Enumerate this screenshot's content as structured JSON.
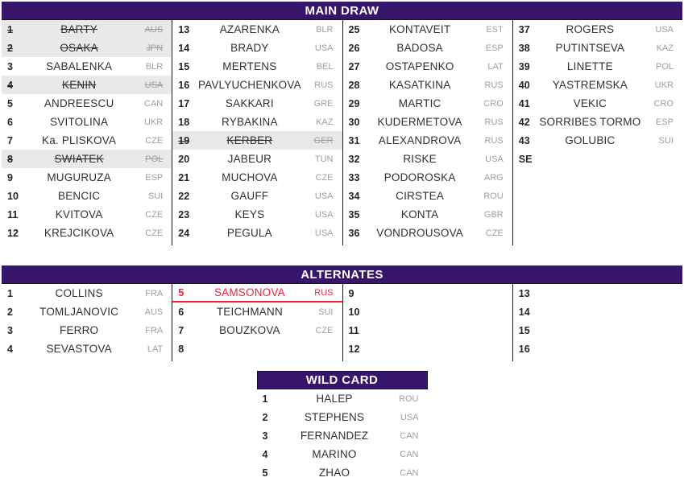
{
  "colors": {
    "header_bg": "#36156b",
    "header_text": "#ffffff",
    "withdrawn_row_bg": "#e9e9e9",
    "promoted_red": "#f5203a",
    "divider": "#1a1a1a",
    "number_text": "#262626",
    "name_text": "#303030",
    "country_text": "#9b9fa3"
  },
  "sections": {
    "main_draw": {
      "title": "MAIN DRAW",
      "columns": [
        {
          "entries": [
            {
              "no": "1",
              "name": "BARTY",
              "country": "AUS",
              "withdrawn": true
            },
            {
              "no": "2",
              "name": "OSAKA",
              "country": "JPN",
              "withdrawn": true
            },
            {
              "no": "3",
              "name": "SABALENKA",
              "country": "BLR"
            },
            {
              "no": "4",
              "name": "KENIN",
              "country": "USA",
              "withdrawn": true
            },
            {
              "no": "5",
              "name": "ANDREESCU",
              "country": "CAN"
            },
            {
              "no": "6",
              "name": "SVITOLINA",
              "country": "UKR"
            },
            {
              "no": "7",
              "name": "Ka. PLISKOVA",
              "country": "CZE"
            },
            {
              "no": "8",
              "name": "SWIATEK",
              "country": "POL",
              "withdrawn": true
            },
            {
              "no": "9",
              "name": "MUGURUZA",
              "country": "ESP"
            },
            {
              "no": "10",
              "name": "BENCIC",
              "country": "SUI"
            },
            {
              "no": "11",
              "name": "KVITOVA",
              "country": "CZE"
            },
            {
              "no": "12",
              "name": "KREJCIKOVA",
              "country": "CZE"
            }
          ]
        },
        {
          "entries": [
            {
              "no": "13",
              "name": "AZARENKA",
              "country": "BLR"
            },
            {
              "no": "14",
              "name": "BRADY",
              "country": "USA"
            },
            {
              "no": "15",
              "name": "MERTENS",
              "country": "BEL"
            },
            {
              "no": "16",
              "name": "PAVLYUCHENKOVA",
              "country": "RUS"
            },
            {
              "no": "17",
              "name": "SAKKARI",
              "country": "GRE"
            },
            {
              "no": "18",
              "name": "RYBAKINA",
              "country": "KAZ"
            },
            {
              "no": "19",
              "name": "KERBER",
              "country": "GER",
              "withdrawn": true
            },
            {
              "no": "20",
              "name": "JABEUR",
              "country": "TUN"
            },
            {
              "no": "21",
              "name": "MUCHOVA",
              "country": "CZE"
            },
            {
              "no": "22",
              "name": "GAUFF",
              "country": "USA"
            },
            {
              "no": "23",
              "name": "KEYS",
              "country": "USA"
            },
            {
              "no": "24",
              "name": "PEGULA",
              "country": "USA"
            }
          ]
        },
        {
          "entries": [
            {
              "no": "25",
              "name": "KONTAVEIT",
              "country": "EST"
            },
            {
              "no": "26",
              "name": "BADOSA",
              "country": "ESP"
            },
            {
              "no": "27",
              "name": "OSTAPENKO",
              "country": "LAT"
            },
            {
              "no": "28",
              "name": "KASATKINA",
              "country": "RUS"
            },
            {
              "no": "29",
              "name": "MARTIC",
              "country": "CRO"
            },
            {
              "no": "30",
              "name": "KUDERMETOVA",
              "country": "RUS"
            },
            {
              "no": "31",
              "name": "ALEXANDROVA",
              "country": "RUS"
            },
            {
              "no": "32",
              "name": "RISKE",
              "country": "USA"
            },
            {
              "no": "33",
              "name": "PODOROSKA",
              "country": "ARG"
            },
            {
              "no": "34",
              "name": "CIRSTEA",
              "country": "ROU"
            },
            {
              "no": "35",
              "name": "KONTA",
              "country": "GBR"
            },
            {
              "no": "36",
              "name": "VONDROUSOVA",
              "country": "CZE"
            }
          ]
        },
        {
          "entries": [
            {
              "no": "37",
              "name": "ROGERS",
              "country": "USA"
            },
            {
              "no": "38",
              "name": "PUTINTSEVA",
              "country": "KAZ"
            },
            {
              "no": "39",
              "name": "LINETTE",
              "country": "POL"
            },
            {
              "no": "40",
              "name": "YASTREMSKA",
              "country": "UKR"
            },
            {
              "no": "41",
              "name": "VEKIC",
              "country": "CRO"
            },
            {
              "no": "42",
              "name": "SORRIBES TORMO",
              "country": "ESP"
            },
            {
              "no": "43",
              "name": "GOLUBIC",
              "country": "SUI"
            },
            {
              "no": "SE",
              "name": "",
              "country": ""
            }
          ]
        }
      ]
    },
    "alternates": {
      "title": "ALTERNATES",
      "columns": [
        {
          "entries": [
            {
              "no": "1",
              "name": "COLLINS",
              "country": "FRA"
            },
            {
              "no": "2",
              "name": "TOMLJANOVIC",
              "country": "AUS"
            },
            {
              "no": "3",
              "name": "FERRO",
              "country": "FRA"
            },
            {
              "no": "4",
              "name": "SEVASTOVA",
              "country": "LAT"
            }
          ]
        },
        {
          "entries": [
            {
              "no": "5",
              "name": "SAMSONOVA",
              "country": "RUS",
              "promoted": true
            },
            {
              "no": "6",
              "name": "TEICHMANN",
              "country": "SUI"
            },
            {
              "no": "7",
              "name": "BOUZKOVA",
              "country": "CZE"
            },
            {
              "no": "8",
              "name": "",
              "country": ""
            }
          ]
        },
        {
          "entries": [
            {
              "no": "9",
              "name": "",
              "country": ""
            },
            {
              "no": "10",
              "name": "",
              "country": ""
            },
            {
              "no": "11",
              "name": "",
              "country": ""
            },
            {
              "no": "12",
              "name": "",
              "country": ""
            }
          ]
        },
        {
          "entries": [
            {
              "no": "13",
              "name": "",
              "country": ""
            },
            {
              "no": "14",
              "name": "",
              "country": ""
            },
            {
              "no": "15",
              "name": "",
              "country": ""
            },
            {
              "no": "16",
              "name": "",
              "country": ""
            }
          ]
        }
      ]
    },
    "wild_card": {
      "title": "WILD CARD",
      "columns": [
        {
          "entries": [
            {
              "no": "1",
              "name": "HALEP",
              "country": "ROU"
            },
            {
              "no": "2",
              "name": "STEPHENS",
              "country": "USA"
            },
            {
              "no": "3",
              "name": "FERNANDEZ",
              "country": "CAN"
            },
            {
              "no": "4",
              "name": "MARINO",
              "country": "CAN"
            },
            {
              "no": "5",
              "name": "ZHAO",
              "country": "CAN"
            }
          ]
        }
      ]
    }
  }
}
